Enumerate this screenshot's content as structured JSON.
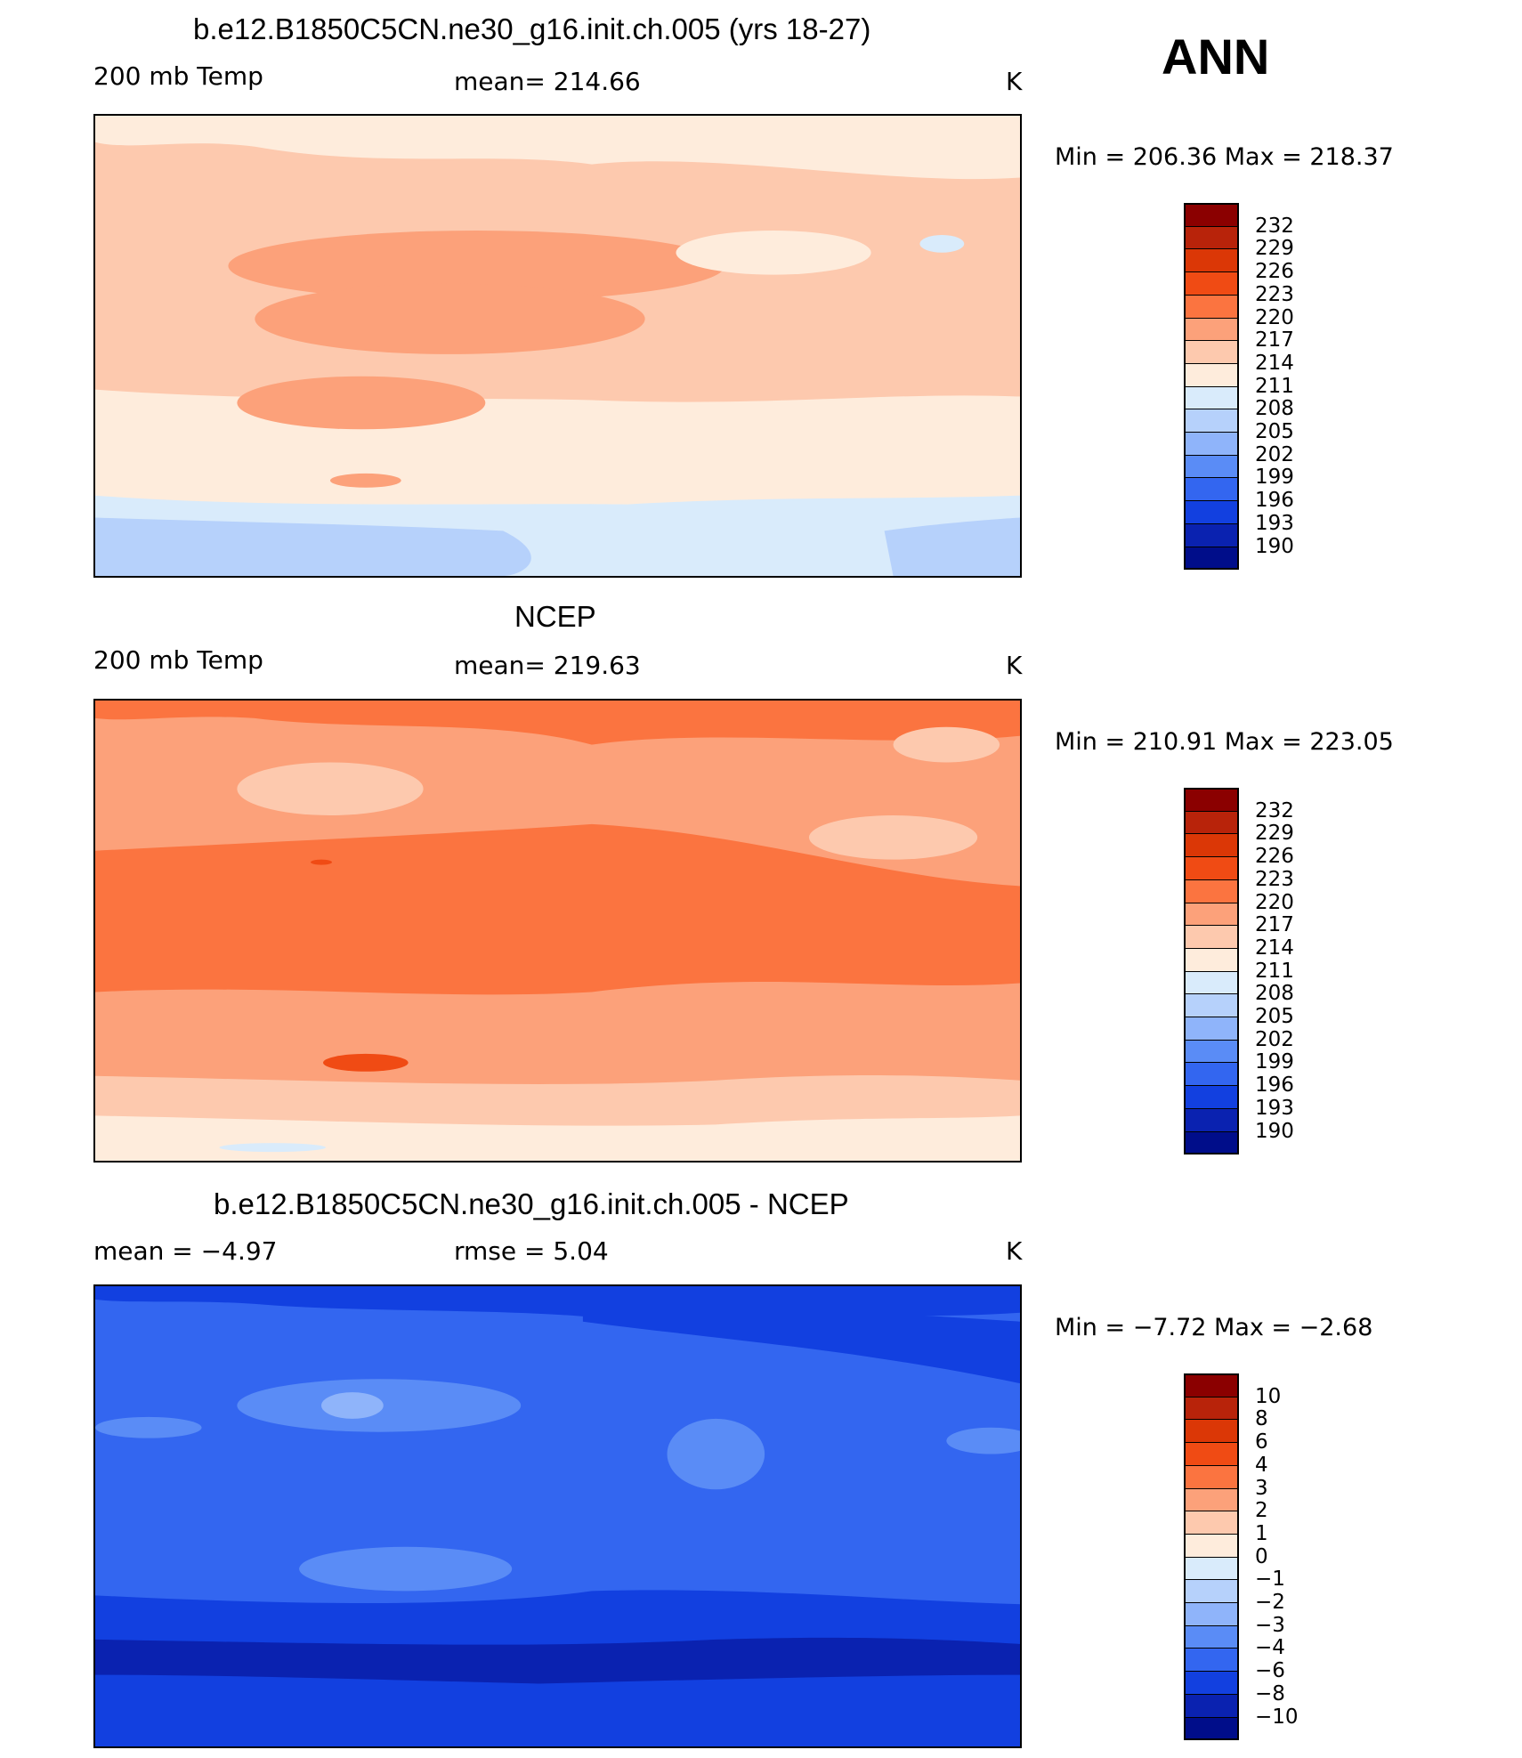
{
  "season": "ANN",
  "panels": [
    {
      "title": "b.e12.B1850C5CN.ne30_g16.init.ch.005 (yrs 18-27)",
      "left_label": "200 mb Temp",
      "center_label": "mean=  214.66",
      "units": "K",
      "minmax": "Min  =  206.36  Max  =  218.37",
      "colorbar": {
        "labels": [
          "232",
          "229",
          "226",
          "223",
          "220",
          "217",
          "214",
          "211",
          "208",
          "205",
          "202",
          "199",
          "196",
          "193",
          "190"
        ],
        "colors": [
          "#8b0000",
          "#b8230a",
          "#db3706",
          "#f04b14",
          "#fb7440",
          "#fca17a",
          "#fdc9ae",
          "#feecdc",
          "#d9ebfb",
          "#b6d1fb",
          "#8fb4fa",
          "#5a8cf6",
          "#3366f0",
          "#1240e0",
          "#0a22b0",
          "#000d8a"
        ]
      },
      "field": {
        "palette": [
          "#feecdc",
          "#fdc9ae",
          "#fca17a",
          "#d9ebfb",
          "#b6d1fb"
        ]
      }
    },
    {
      "title": "NCEP",
      "left_label": "200 mb Temp",
      "center_label": "mean=  219.63",
      "units": "K",
      "minmax": "Min  =  210.91  Max  =  223.05",
      "colorbar": {
        "labels": [
          "232",
          "229",
          "226",
          "223",
          "220",
          "217",
          "214",
          "211",
          "208",
          "205",
          "202",
          "199",
          "196",
          "193",
          "190"
        ],
        "colors": [
          "#8b0000",
          "#b8230a",
          "#db3706",
          "#f04b14",
          "#fb7440",
          "#fca17a",
          "#fdc9ae",
          "#feecdc",
          "#d9ebfb",
          "#b6d1fb",
          "#8fb4fa",
          "#5a8cf6",
          "#3366f0",
          "#1240e0",
          "#0a22b0",
          "#000d8a"
        ]
      },
      "field": {
        "palette": [
          "#fb7440",
          "#fca17a",
          "#fdc9ae",
          "#feecdc",
          "#f04b14"
        ]
      }
    },
    {
      "title": "b.e12.B1850C5CN.ne30_g16.init.ch.005 - NCEP",
      "left_label": "mean =    −4.97",
      "center_label": "rmse =     5.04",
      "units": "K",
      "minmax": "Min  =    −7.72  Max  =    −2.68",
      "colorbar": {
        "labels": [
          "10",
          "8",
          "6",
          "4",
          "3",
          "2",
          "1",
          "0",
          "−1",
          "−2",
          "−3",
          "−4",
          "−6",
          "−8",
          "−10"
        ],
        "colors": [
          "#8b0000",
          "#b8230a",
          "#db3706",
          "#f04b14",
          "#fb7440",
          "#fca17a",
          "#fdc9ae",
          "#feecdc",
          "#d9ebfb",
          "#b6d1fb",
          "#8fb4fa",
          "#5a8cf6",
          "#3366f0",
          "#1240e0",
          "#0a22b0",
          "#000d8a"
        ]
      },
      "field": {
        "palette": [
          "#1240e0",
          "#3366f0",
          "#0a22b0",
          "#5a8cf6",
          "#8fb4fa"
        ]
      }
    }
  ]
}
